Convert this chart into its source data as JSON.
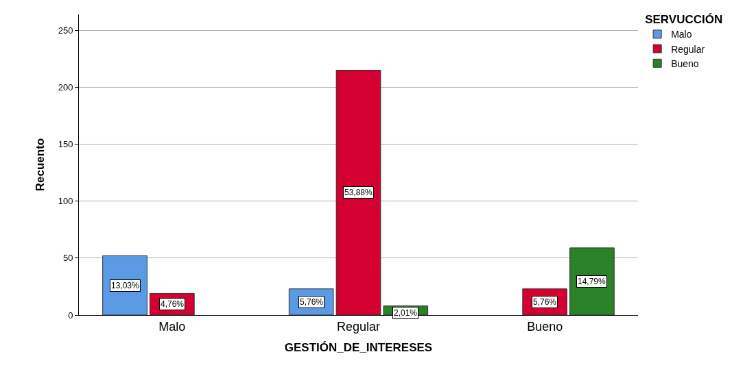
{
  "chart_data": {
    "type": "bar",
    "xlabel": "GESTIÓN_DE_INTERESES",
    "ylabel": "Recuento",
    "legend_title": "SERVUCCIÓN",
    "categories": [
      "Malo",
      "Regular",
      "Bueno"
    ],
    "series": [
      {
        "name": "Malo",
        "color": "#5b9be6",
        "values": [
          52,
          23,
          null
        ]
      },
      {
        "name": "Regular",
        "color": "#d50032",
        "values": [
          19,
          215,
          23
        ]
      },
      {
        "name": "Bueno",
        "color": "#2a8128",
        "values": [
          null,
          8,
          59
        ]
      }
    ],
    "annotations": [
      "13,03%",
      "5,76%",
      "4,76%",
      "53,88%",
      "5,76%",
      "2,01%",
      "14,79%"
    ],
    "ylim": [
      0,
      264
    ],
    "yticks": [
      0,
      50,
      100,
      150,
      200,
      250
    ],
    "grid": "y",
    "legend": "top right"
  }
}
